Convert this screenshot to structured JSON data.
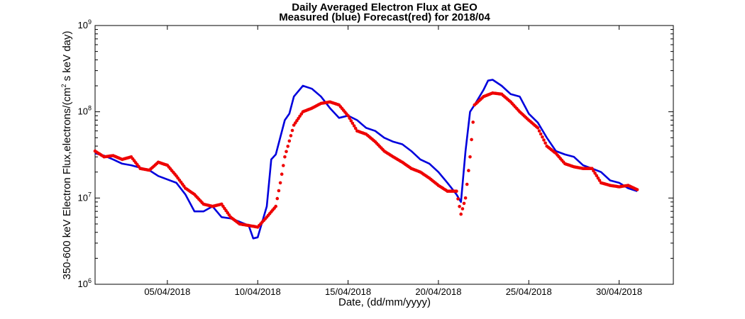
{
  "chart_data": {
    "type": "line",
    "title": "Daily Averaged Electron Flux at GEO",
    "subtitle": "Measured (blue) Forecast(red) for 2018/04",
    "xlabel": "Date, (dd/mm/yyyy)",
    "ylabel": {
      "prefix": "350-600 keV Electron Flux,electrons/(cm",
      "exponent": "2",
      "suffix": " s keV day)"
    },
    "yscale": "log",
    "ylim": [
      1000000,
      1000000000
    ],
    "xlim": [
      "2018-04-01",
      "2018-05-03"
    ],
    "x_ticks": [
      "05/04/2018",
      "10/04/2018",
      "15/04/2018",
      "20/04/2018",
      "25/04/2018",
      "30/04/2018"
    ],
    "y_ticks": [
      {
        "base": "10",
        "exp": "6"
      },
      {
        "base": "10",
        "exp": "7"
      },
      {
        "base": "10",
        "exp": "8"
      },
      {
        "base": "10",
        "exp": "9"
      }
    ],
    "grid": false,
    "colors": {
      "measured": "#0000dd",
      "forecast": "#ee0000"
    },
    "series": [
      {
        "style": "line",
        "x": [
          "2018-04-01",
          "2018-04-01 12:00",
          "2018-04-02",
          "2018-04-02 12:00",
          "2018-04-03",
          "2018-04-04",
          "2018-04-04 12:00",
          "2018-04-05 12:00",
          "2018-04-06",
          "2018-04-06 12:00",
          "2018-04-07",
          "2018-04-07 12:00",
          "2018-04-08",
          "2018-04-08 12:00",
          "2018-04-09",
          "2018-04-09 12:00",
          "2018-04-09 18:00",
          "2018-04-10",
          "2018-04-10 12:00",
          "2018-04-10 18:00",
          "2018-04-11",
          "2018-04-11 12:00",
          "2018-04-11 18:00",
          "2018-04-12",
          "2018-04-12 12:00",
          "2018-04-13",
          "2018-04-13 12:00",
          "2018-04-14",
          "2018-04-14 12:00",
          "2018-04-15",
          "2018-04-15 12:00",
          "2018-04-16",
          "2018-04-16 12:00",
          "2018-04-17",
          "2018-04-17 12:00",
          "2018-04-18",
          "2018-04-18 12:00",
          "2018-04-19",
          "2018-04-19 12:00",
          "2018-04-20",
          "2018-04-20 12:00",
          "2018-04-21",
          "2018-04-21 06:00",
          "2018-04-21 12:00",
          "2018-04-21 18:00",
          "2018-04-22",
          "2018-04-22 12:00",
          "2018-04-22 18:00",
          "2018-04-23",
          "2018-04-23 12:00",
          "2018-04-24",
          "2018-04-24 12:00",
          "2018-04-25",
          "2018-04-25 12:00",
          "2018-04-26",
          "2018-04-26 12:00",
          "2018-04-27",
          "2018-04-27 12:00",
          "2018-04-28",
          "2018-04-28 12:00",
          "2018-04-29",
          "2018-04-29 12:00",
          "2018-04-30",
          "2018-04-30 12:00",
          "2018-05-01"
        ],
        "y": [
          33000000,
          31000000,
          28000000,
          25000000,
          24000000,
          21000000,
          18000000,
          15000000,
          11000000,
          7000000,
          7000000,
          8000000,
          6000000,
          5800000,
          5300000,
          4800000,
          3400000,
          3500000,
          8000000,
          28000000,
          32000000,
          80000000,
          95000000,
          150000000,
          200000000,
          185000000,
          150000000,
          110000000,
          85000000,
          90000000,
          80000000,
          65000000,
          60000000,
          50000000,
          45000000,
          42000000,
          35000000,
          28000000,
          25000000,
          20000000,
          15000000,
          11000000,
          9000000,
          35000000,
          100000000,
          120000000,
          180000000,
          230000000,
          235000000,
          200000000,
          160000000,
          150000000,
          95000000,
          75000000,
          50000000,
          35000000,
          32000000,
          30000000,
          24000000,
          22000000,
          20000000,
          16000000,
          15000000,
          13000000,
          12000000
        ]
      },
      {
        "style": "dots",
        "x": [
          "2018-04-01",
          "2018-04-01 12:00",
          "2018-04-02",
          "2018-04-02 12:00",
          "2018-04-03",
          "2018-04-03 12:00",
          "2018-04-04",
          "2018-04-04 12:00",
          "2018-04-05",
          "2018-04-05 12:00",
          "2018-04-06",
          "2018-04-06 12:00",
          "2018-04-07",
          "2018-04-07 12:00",
          "2018-04-08",
          "2018-04-08 12:00",
          "2018-04-09",
          "2018-04-09 12:00",
          "2018-04-10",
          "2018-04-10 12:00",
          "2018-04-11",
          "2018-04-11 06:00",
          "2018-04-11 12:00",
          "2018-04-12",
          "2018-04-12 12:00",
          "2018-04-13",
          "2018-04-13 12:00",
          "2018-04-14",
          "2018-04-14 12:00",
          "2018-04-15",
          "2018-04-15 12:00",
          "2018-04-16",
          "2018-04-16 12:00",
          "2018-04-17",
          "2018-04-17 12:00",
          "2018-04-18",
          "2018-04-18 12:00",
          "2018-04-19",
          "2018-04-19 12:00",
          "2018-04-20",
          "2018-04-20 12:00",
          "2018-04-21",
          "2018-04-21 06:00",
          "2018-04-21 12:00",
          "2018-04-21 18:00",
          "2018-04-22",
          "2018-04-22 12:00",
          "2018-04-23",
          "2018-04-23 12:00",
          "2018-04-24",
          "2018-04-24 12:00",
          "2018-04-25",
          "2018-04-25 12:00",
          "2018-04-26",
          "2018-04-26 12:00",
          "2018-04-27",
          "2018-04-27 12:00",
          "2018-04-28",
          "2018-04-28 12:00",
          "2018-04-29",
          "2018-04-29 12:00",
          "2018-04-30",
          "2018-04-30 12:00",
          "2018-05-01"
        ],
        "y": [
          35000000,
          30000000,
          31000000,
          28000000,
          30000000,
          22000000,
          21000000,
          26000000,
          24000000,
          18000000,
          13000000,
          11000000,
          8500000,
          8000000,
          8500000,
          6000000,
          5000000,
          4800000,
          4600000,
          6000000,
          8000000,
          15000000,
          30000000,
          70000000,
          100000000,
          110000000,
          125000000,
          130000000,
          120000000,
          90000000,
          60000000,
          55000000,
          45000000,
          35000000,
          30000000,
          26000000,
          22000000,
          20000000,
          17000000,
          14000000,
          12000000,
          12000000,
          6500000,
          10000000,
          30000000,
          120000000,
          150000000,
          165000000,
          160000000,
          130000000,
          100000000,
          80000000,
          65000000,
          40000000,
          33000000,
          25000000,
          23000000,
          22000000,
          22000000,
          15000000,
          14000000,
          13500000,
          14000000,
          12500000
        ]
      }
    ]
  }
}
